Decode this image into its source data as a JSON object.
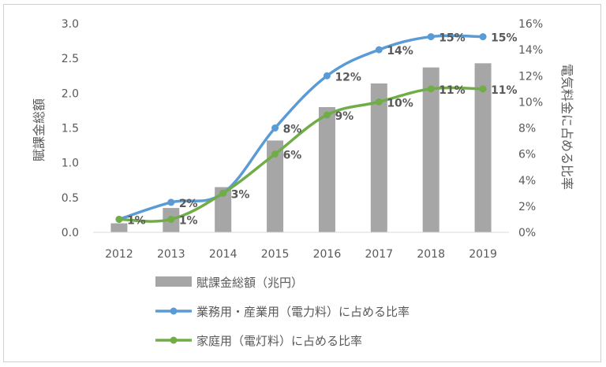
{
  "chart_data": {
    "type": "bar+line",
    "categories": [
      "2012",
      "2013",
      "2014",
      "2015",
      "2016",
      "2017",
      "2018",
      "2019"
    ],
    "bar_series": {
      "name": "賦課金総額（兆円）",
      "values": [
        0.13,
        0.35,
        0.65,
        1.32,
        1.8,
        2.14,
        2.37,
        2.43
      ],
      "color": "#a6a6a6"
    },
    "line_series": [
      {
        "name": "業務用・産業用（電力料）に占める比率",
        "values": [
          1,
          2.3,
          3,
          8,
          12,
          14,
          15,
          15
        ],
        "labels": [
          "",
          "2%",
          "3%",
          "8%",
          "12%",
          "14%",
          "15%",
          "15%"
        ],
        "color": "#5b9bd5"
      },
      {
        "name": "家庭用（電灯料）に占める比率",
        "values": [
          1,
          1,
          3,
          6,
          9,
          10,
          11,
          11
        ],
        "labels": [
          "1%",
          "1%",
          "",
          "6%",
          "9%",
          "10%",
          "11%",
          "11%"
        ],
        "color": "#70ad47"
      }
    ],
    "y_left": {
      "label": "賦課金総額",
      "range": [
        0,
        3
      ],
      "ticks": [
        "0.0",
        "0.5",
        "1.0",
        "1.5",
        "2.0",
        "2.5",
        "3.0"
      ]
    },
    "y_right": {
      "label": "電気料金に占める比率",
      "range": [
        0,
        16
      ],
      "ticks": [
        "0%",
        "2%",
        "4%",
        "6%",
        "8%",
        "10%",
        "12%",
        "14%",
        "16%"
      ]
    },
    "grid": false,
    "legend_position": "bottom"
  }
}
